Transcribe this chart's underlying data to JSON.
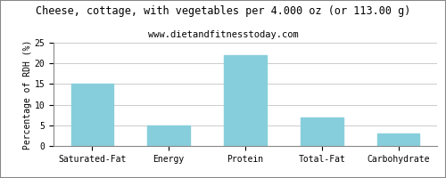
{
  "title": "Cheese, cottage, with vegetables per 4.000 oz (or 113.00 g)",
  "subtitle": "www.dietandfitnesstoday.com",
  "categories": [
    "Saturated-Fat",
    "Energy",
    "Protein",
    "Total-Fat",
    "Carbohydrate"
  ],
  "values": [
    15,
    5,
    22,
    7,
    3
  ],
  "bar_color": "#87CEDC",
  "ylabel": "Percentage of RDH (%)",
  "ylim": [
    0,
    25
  ],
  "yticks": [
    0,
    5,
    10,
    15,
    20,
    25
  ],
  "title_fontsize": 8.5,
  "subtitle_fontsize": 7.5,
  "ylabel_fontsize": 7,
  "tick_fontsize": 7,
  "background_color": "#ffffff",
  "grid_color": "#cccccc",
  "border_color": "#888888"
}
